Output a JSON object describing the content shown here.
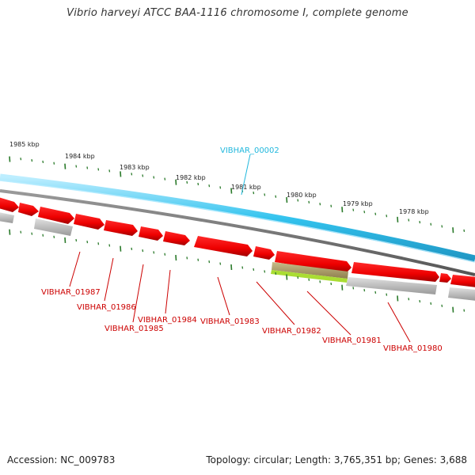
{
  "title": "Vibrio harveyi ATCC BAA-1116 chromosome I, complete genome",
  "footer": {
    "accession": "Accession: NC_009783",
    "summary": "Topology: circular; Length: 3,765,351 bp; Genes: 3,688"
  },
  "colors": {
    "forward_gene": "#ff0000",
    "gene_label": "#cc0000",
    "highlight_label": "#22b8dd",
    "backbone_blue": "#33c3ee",
    "tick": "#2a7a2a",
    "gc_positive": "#aadd33",
    "gc_negative": "#b8a870",
    "pseudo": "#bbbbbb"
  },
  "ruler": {
    "labels": [
      "1985 kbp",
      "1984 kbp",
      "1983 kbp",
      "1982 kbp",
      "1981 kbp",
      "1980 kbp",
      "1979 kbp",
      "1978 kbp"
    ]
  },
  "highlight": {
    "label": "VIBHAR_00002"
  },
  "genes": [
    {
      "label": "VIBHAR_01987"
    },
    {
      "label": "VIBHAR_01986"
    },
    {
      "label": "VIBHAR_01985"
    },
    {
      "label": "VIBHAR_01984"
    },
    {
      "label": "VIBHAR_01983"
    },
    {
      "label": "VIBHAR_01982"
    },
    {
      "label": "VIBHAR_01981"
    },
    {
      "label": "VIBHAR_01980"
    }
  ]
}
